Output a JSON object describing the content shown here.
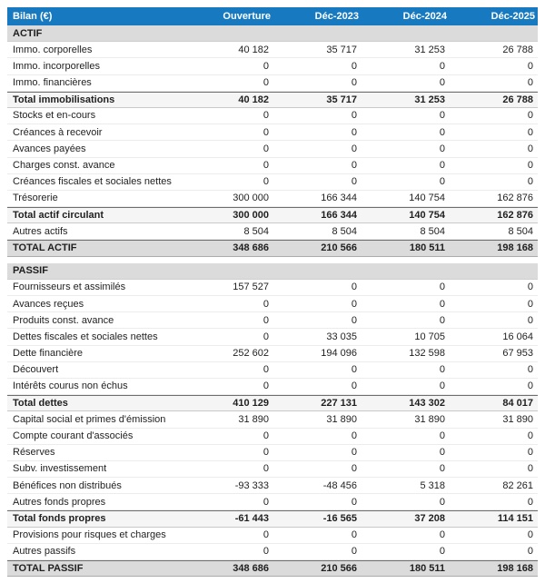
{
  "table": {
    "header": {
      "label": "Bilan (€)",
      "columns": [
        "Ouverture",
        "Déc-2023",
        "Déc-2024",
        "Déc-2025"
      ]
    },
    "colors": {
      "header_bg": "#1779bf",
      "header_text": "#ffffff",
      "section_bg": "#dbdbdb",
      "total_row_bg": "#f5f5f5",
      "grand_total_bg": "#dbdbdb",
      "text": "#1f1f1f"
    },
    "sections": [
      {
        "name": "ACTIF",
        "rows": [
          {
            "type": "section",
            "label": "ACTIF",
            "values": [
              "",
              "",
              "",
              ""
            ]
          },
          {
            "type": "item",
            "label": "Immo. corporelles",
            "values": [
              "40 182",
              "35 717",
              "31 253",
              "26 788"
            ]
          },
          {
            "type": "item",
            "label": "Immo. incorporelles",
            "values": [
              "0",
              "0",
              "0",
              "0"
            ]
          },
          {
            "type": "item",
            "label": "Immo. financières",
            "values": [
              "0",
              "0",
              "0",
              "0"
            ]
          },
          {
            "type": "total",
            "label": "Total immobilisations",
            "values": [
              "40 182",
              "35 717",
              "31 253",
              "26 788"
            ]
          },
          {
            "type": "item",
            "label": "Stocks et en-cours",
            "values": [
              "0",
              "0",
              "0",
              "0"
            ]
          },
          {
            "type": "item",
            "label": "Créances à recevoir",
            "values": [
              "0",
              "0",
              "0",
              "0"
            ]
          },
          {
            "type": "item",
            "label": "Avances payées",
            "values": [
              "0",
              "0",
              "0",
              "0"
            ]
          },
          {
            "type": "item",
            "label": "Charges const. avance",
            "values": [
              "0",
              "0",
              "0",
              "0"
            ]
          },
          {
            "type": "item",
            "label": "Créances fiscales et sociales nettes",
            "values": [
              "0",
              "0",
              "0",
              "0"
            ]
          },
          {
            "type": "item",
            "label": "Trésorerie",
            "values": [
              "300 000",
              "166 344",
              "140 754",
              "162 876"
            ]
          },
          {
            "type": "total",
            "label": "Total actif circulant",
            "values": [
              "300 000",
              "166 344",
              "140 754",
              "162 876"
            ]
          },
          {
            "type": "item",
            "label": "Autres actifs",
            "values": [
              "8 504",
              "8 504",
              "8 504",
              "8 504"
            ]
          },
          {
            "type": "grand",
            "label": "TOTAL ACTIF",
            "values": [
              "348 686",
              "210 566",
              "180 511",
              "198 168"
            ]
          }
        ]
      },
      {
        "name": "PASSIF",
        "rows": [
          {
            "type": "section",
            "label": "PASSIF",
            "values": [
              "",
              "",
              "",
              ""
            ]
          },
          {
            "type": "item",
            "label": "Fournisseurs et assimilés",
            "values": [
              "157 527",
              "0",
              "0",
              "0"
            ]
          },
          {
            "type": "item",
            "label": "Avances reçues",
            "values": [
              "0",
              "0",
              "0",
              "0"
            ]
          },
          {
            "type": "item",
            "label": "Produits const. avance",
            "values": [
              "0",
              "0",
              "0",
              "0"
            ]
          },
          {
            "type": "item",
            "label": "Dettes fiscales et sociales nettes",
            "values": [
              "0",
              "33 035",
              "10 705",
              "16 064"
            ]
          },
          {
            "type": "item",
            "label": "Dette financière",
            "values": [
              "252 602",
              "194 096",
              "132 598",
              "67 953"
            ]
          },
          {
            "type": "item",
            "label": "Découvert",
            "values": [
              "0",
              "0",
              "0",
              "0"
            ]
          },
          {
            "type": "item",
            "label": "Intérêts courus non échus",
            "values": [
              "0",
              "0",
              "0",
              "0"
            ]
          },
          {
            "type": "total",
            "label": "Total dettes",
            "values": [
              "410 129",
              "227 131",
              "143 302",
              "84 017"
            ]
          },
          {
            "type": "item",
            "label": "Capital social et primes d'émission",
            "values": [
              "31 890",
              "31 890",
              "31 890",
              "31 890"
            ]
          },
          {
            "type": "item",
            "label": "Compte courant d'associés",
            "values": [
              "0",
              "0",
              "0",
              "0"
            ]
          },
          {
            "type": "item",
            "label": "Réserves",
            "values": [
              "0",
              "0",
              "0",
              "0"
            ]
          },
          {
            "type": "item",
            "label": "Subv. investissement",
            "values": [
              "0",
              "0",
              "0",
              "0"
            ]
          },
          {
            "type": "item",
            "label": "Bénéfices non distribués",
            "values": [
              "-93 333",
              "-48 456",
              "5 318",
              "82 261"
            ]
          },
          {
            "type": "item",
            "label": "Autres fonds propres",
            "values": [
              "0",
              "0",
              "0",
              "0"
            ]
          },
          {
            "type": "total",
            "label": "Total fonds propres",
            "values": [
              "-61 443",
              "-16 565",
              "37 208",
              "114 151"
            ]
          },
          {
            "type": "item",
            "label": "Provisions pour risques et charges",
            "values": [
              "0",
              "0",
              "0",
              "0"
            ]
          },
          {
            "type": "item",
            "label": "Autres passifs",
            "values": [
              "0",
              "0",
              "0",
              "0"
            ]
          },
          {
            "type": "grand",
            "label": "TOTAL PASSIF",
            "values": [
              "348 686",
              "210 566",
              "180 511",
              "198 168"
            ]
          }
        ]
      }
    ]
  }
}
